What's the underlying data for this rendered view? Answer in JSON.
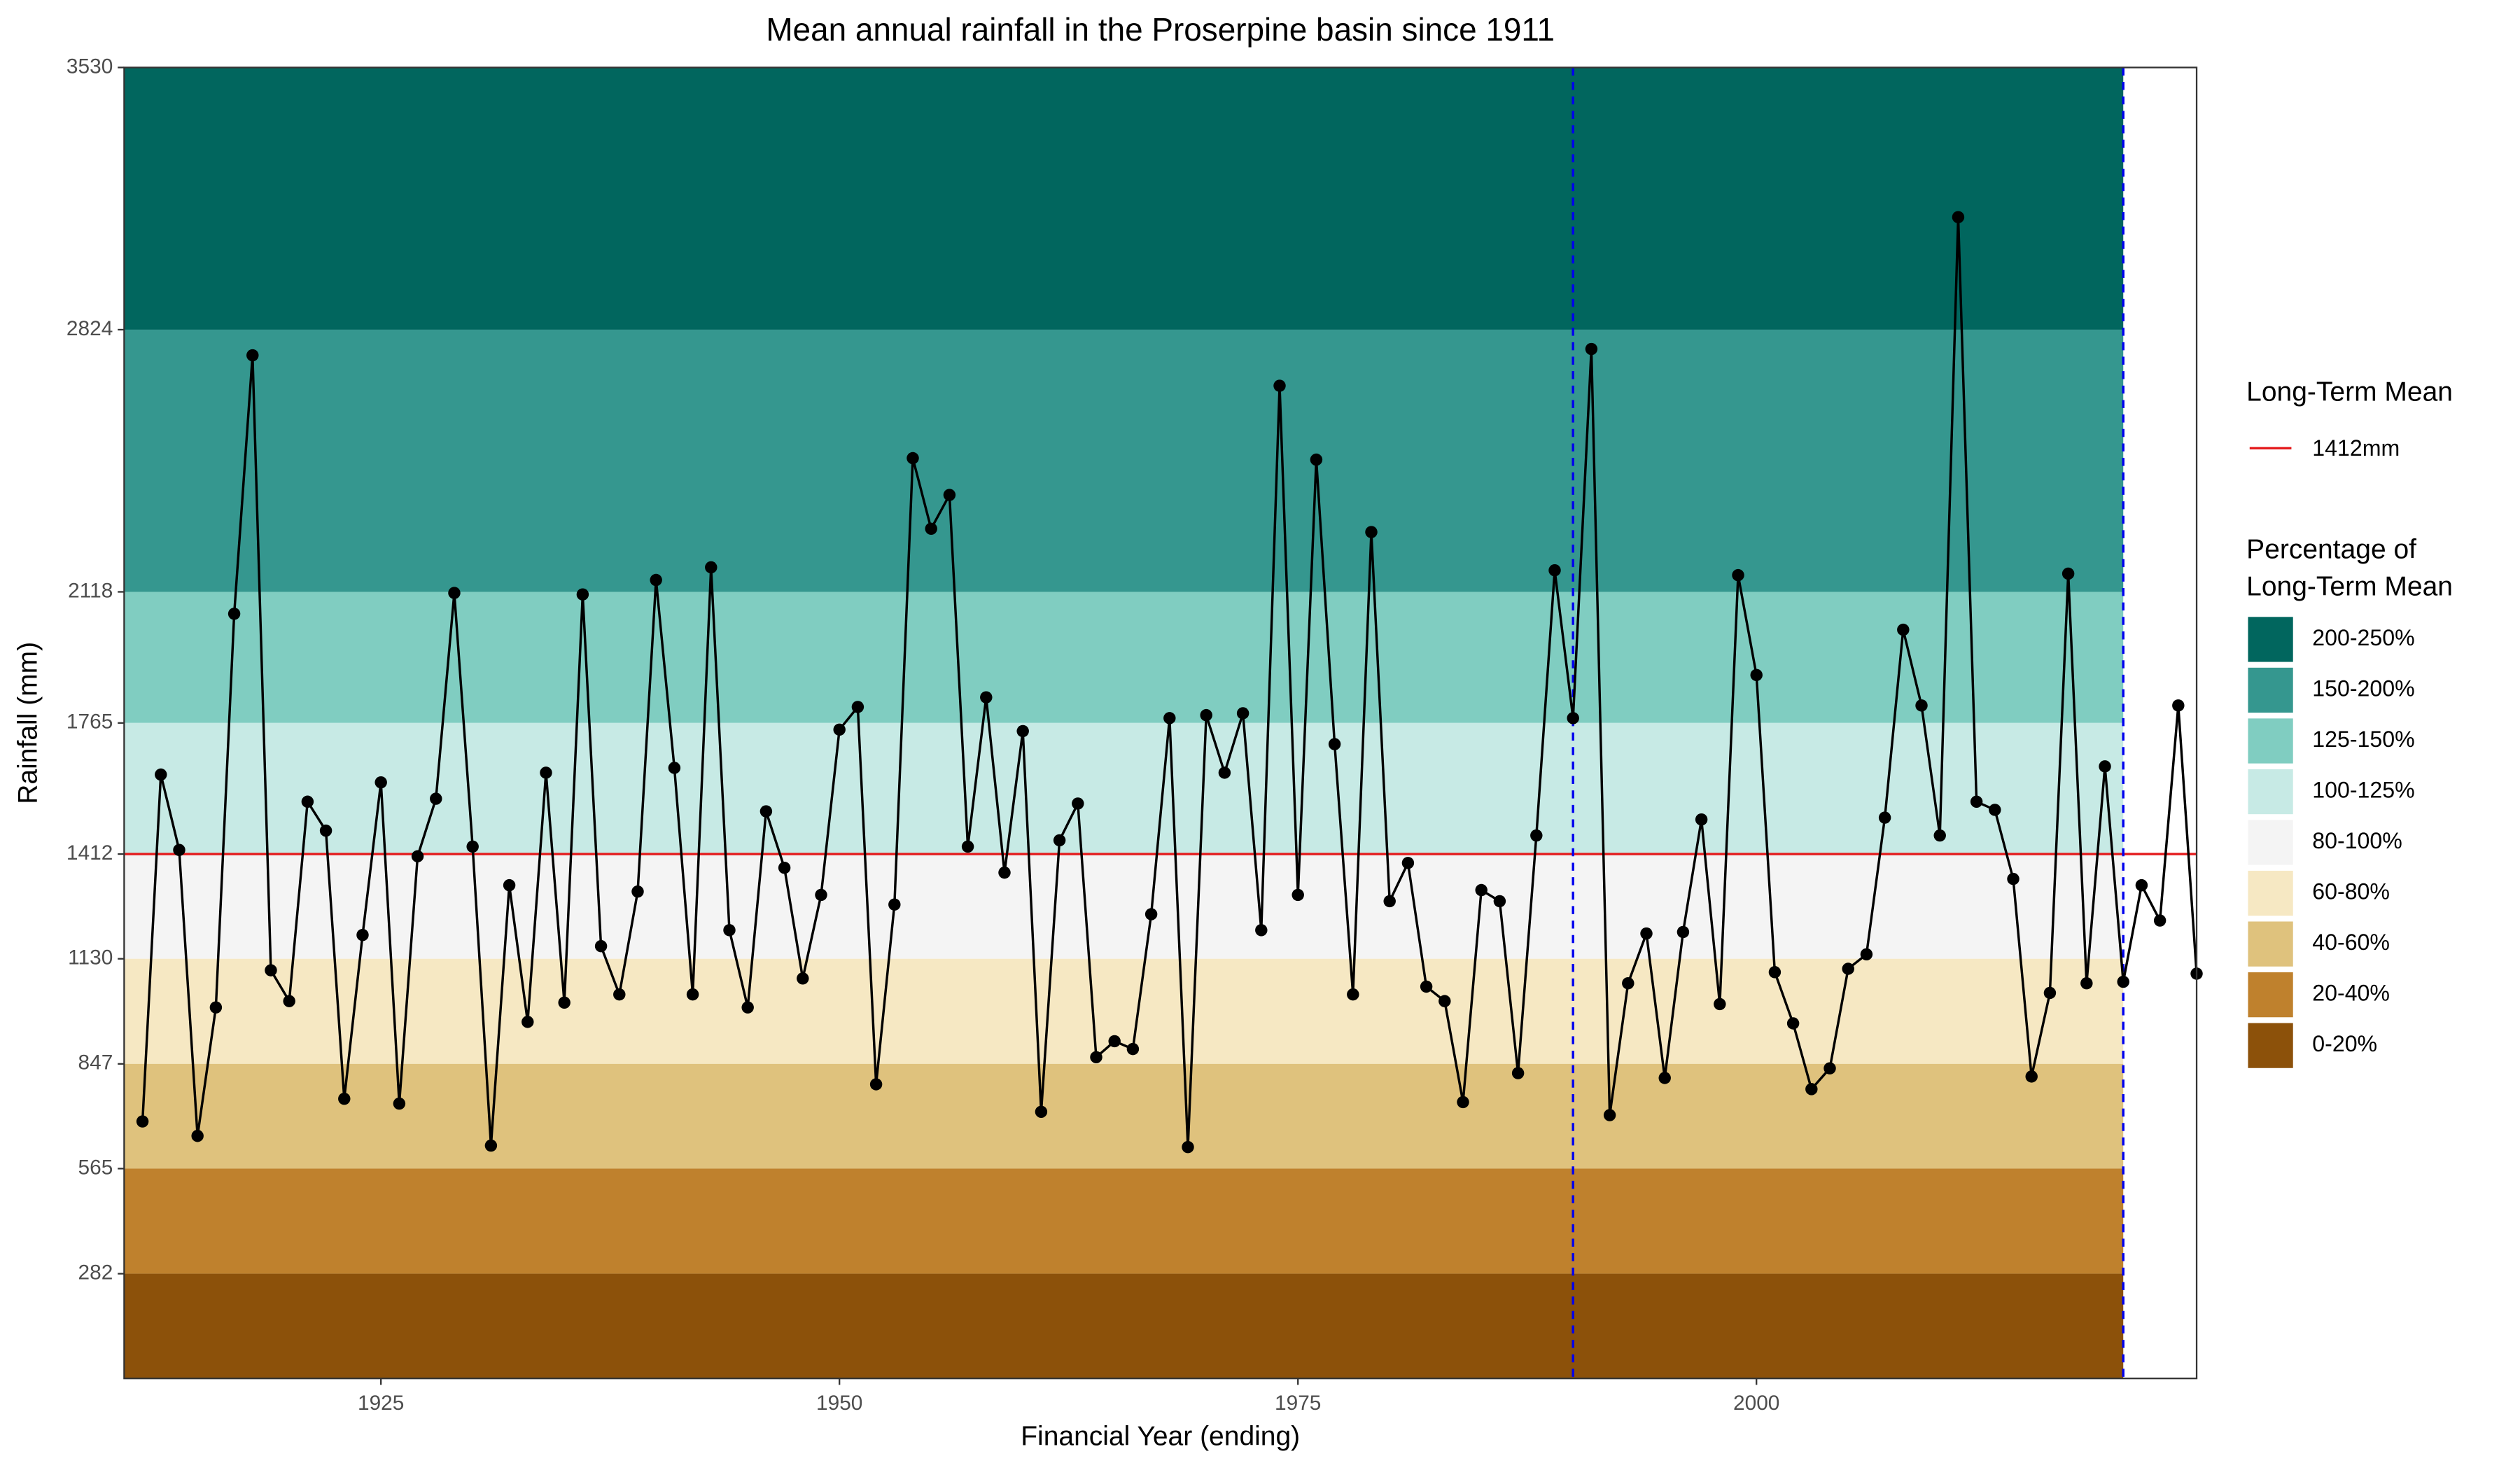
{
  "chart_data": {
    "type": "line",
    "title": "Mean annual rainfall in the Proserpine basin since 1911",
    "x_label": "Financial Year (ending)",
    "y_label": "Rainfall (mm)",
    "x": [
      1912,
      1913,
      1914,
      1915,
      1916,
      1917,
      1918,
      1919,
      1920,
      1921,
      1922,
      1923,
      1924,
      1925,
      1926,
      1927,
      1928,
      1929,
      1930,
      1931,
      1932,
      1933,
      1934,
      1935,
      1936,
      1937,
      1938,
      1939,
      1940,
      1941,
      1942,
      1943,
      1944,
      1945,
      1946,
      1947,
      1948,
      1949,
      1950,
      1951,
      1952,
      1953,
      1954,
      1955,
      1956,
      1957,
      1958,
      1959,
      1960,
      1961,
      1962,
      1963,
      1964,
      1965,
      1966,
      1967,
      1968,
      1969,
      1970,
      1971,
      1972,
      1973,
      1974,
      1975,
      1976,
      1977,
      1978,
      1979,
      1980,
      1981,
      1982,
      1983,
      1984,
      1985,
      1986,
      1987,
      1988,
      1989,
      1990,
      1991,
      1992,
      1993,
      1994,
      1995,
      1996,
      1997,
      1998,
      1999,
      2000,
      2001,
      2002,
      2003,
      2004,
      2005,
      2006,
      2007,
      2008,
      2009,
      2010,
      2011,
      2012,
      2013,
      2014,
      2015,
      2016,
      2017,
      2018,
      2019,
      2020,
      2021,
      2022,
      2023,
      2024
    ],
    "values": [
      692,
      1626,
      1423,
      653,
      999,
      2059,
      2755,
      1099,
      1016,
      1553,
      1475,
      753,
      1194,
      1605,
      740,
      1406,
      1561,
      2115,
      1432,
      627,
      1328,
      960,
      1631,
      1012,
      2111,
      1164,
      1034,
      1311,
      2150,
      1644,
      1034,
      2184,
      1207,
      999,
      1527,
      1375,
      1077,
      1302,
      1747,
      1808,
      792,
      1276,
      2478,
      2288,
      2379,
      1432,
      1834,
      1362,
      1743,
      718,
      1449,
      1548,
      865,
      908,
      887,
      1250,
      1778,
      623,
      1786,
      1631,
      1791,
      1207,
      2673,
      1302,
      2474,
      1708,
      1034,
      2279,
      1285,
      1388,
      1055,
      1016,
      744,
      1315,
      1285,
      822,
      1462,
      2176,
      1778,
      2772,
      709,
      1064,
      1198,
      809,
      1202,
      1505,
      1008,
      2163,
      1894,
      1094,
      956,
      779,
      835,
      1103,
      1142,
      1510,
      2016,
      1812,
      1462,
      3127,
      1553,
      1531,
      1345,
      813,
      1038,
      2167,
      1064,
      1648,
      1068,
      1328,
      1233,
      1812,
      1090
    ],
    "color": "#000000",
    "xlim": [
      1911,
      2024
    ],
    "ylim": [
      0,
      3530
    ],
    "xticks": [
      1925,
      1950,
      1975,
      2000
    ],
    "yticks": [
      282,
      565,
      847,
      1130,
      1412,
      1765,
      2118,
      2824,
      3530
    ],
    "mean_legend_title": "Long-Term Mean",
    "mean": {
      "value": 1412,
      "label": "1412mm",
      "color": "#e41a1c"
    },
    "band_legend_title": [
      "Percentage of",
      "Long-Term Mean"
    ],
    "bands_xmax": 2020,
    "bands": [
      {
        "label": "200-250%",
        "ymin": 2824,
        "ymax": 3530,
        "color": "#01665e"
      },
      {
        "label": "150-200%",
        "ymin": 2118,
        "ymax": 2824,
        "color": "#35978f"
      },
      {
        "label": "125-150%",
        "ymin": 1765,
        "ymax": 2118,
        "color": "#80cdc1"
      },
      {
        "label": "100-125%",
        "ymin": 1412,
        "ymax": 1765,
        "color": "#c7eae5"
      },
      {
        "label": "80-100%",
        "ymin": 1130,
        "ymax": 1412,
        "color": "#f4f4f4"
      },
      {
        "label": "60-80%",
        "ymin": 847,
        "ymax": 1130,
        "color": "#f6e8c3"
      },
      {
        "label": "40-60%",
        "ymin": 565,
        "ymax": 847,
        "color": "#dfc27d"
      },
      {
        "label": "20-40%",
        "ymin": 282,
        "ymax": 565,
        "color": "#bf812d"
      },
      {
        "label": "0-20%",
        "ymin": 0,
        "ymax": 282,
        "color": "#8c510a"
      }
    ],
    "vlines": [
      {
        "x": 1990,
        "color": "#0000ee"
      },
      {
        "x": 2020,
        "color": "#0000ee"
      }
    ]
  }
}
